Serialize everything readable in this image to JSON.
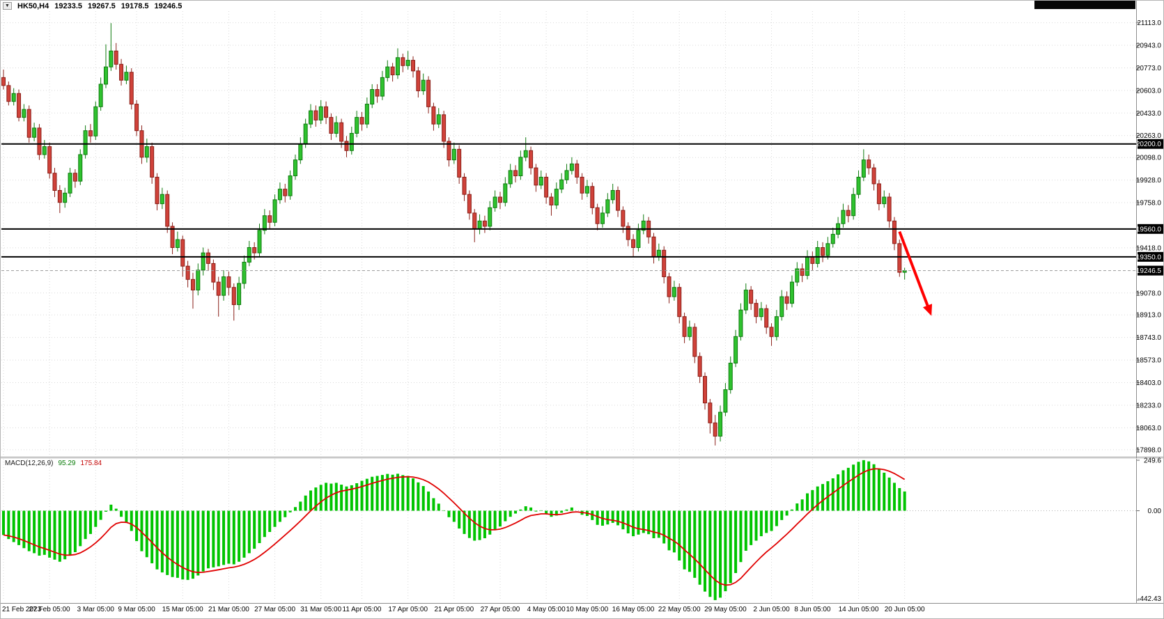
{
  "header": {
    "symbol_period": "HK50,H4",
    "open": "19233.5",
    "high": "19267.5",
    "low": "19178.5",
    "close": "19246.5"
  },
  "indicator": {
    "name": "MACD(12,26,9)",
    "main": "95.29",
    "signal": "175.84"
  },
  "arrow": {
    "from_index": 175,
    "from_price": 19540,
    "to_index": 181,
    "to_price": 18930
  },
  "colors": {
    "bull": "#2fc22f",
    "bull_border": "#0e7a0e",
    "bear": "#d0423a",
    "bear_border": "#8a1f18",
    "macd_hist": "#00c400",
    "macd_signal": "#e00000",
    "arrow": "#ff0000",
    "level_line": "#000000",
    "grid": "#d9d9d9",
    "axis_text": "#000000",
    "price_box_bg": "#000000",
    "price_box_text": "#ffffff"
  },
  "chart_data": {
    "type": "candlestick",
    "title": "HK50,H4",
    "ohlc_display": {
      "open": 19233.5,
      "high": 19267.5,
      "low": 19178.5,
      "close": 19246.5
    },
    "price_range": {
      "max": 21200,
      "min": 17850
    },
    "y_axis_ticks": [
      "21113.0",
      "20943.0",
      "20773.0",
      "20603.0",
      "20433.0",
      "20263.0",
      "20098.0",
      "19928.0",
      "19758.0",
      "19418.0",
      "19078.0",
      "18913.0",
      "18743.0",
      "18573.0",
      "18403.0",
      "18233.0",
      "18063.0",
      "17898.0"
    ],
    "horizontal_levels": [
      20200.0,
      19560.0,
      19350.0
    ],
    "current_price": 19246.5,
    "x_axis_labels": [
      {
        "text": "21 Feb 2023",
        "candle_index": 0
      },
      {
        "text": "27 Feb 05:00",
        "candle_index": 9
      },
      {
        "text": "3 Mar 05:00",
        "candle_index": 18
      },
      {
        "text": "9 Mar 05:00",
        "candle_index": 26
      },
      {
        "text": "15 Mar 05:00",
        "candle_index": 35
      },
      {
        "text": "21 Mar 05:00",
        "candle_index": 44
      },
      {
        "text": "27 Mar 05:00",
        "candle_index": 53
      },
      {
        "text": "31 Mar 05:00",
        "candle_index": 62
      },
      {
        "text": "11 Apr 05:00",
        "candle_index": 70
      },
      {
        "text": "17 Apr 05:00",
        "candle_index": 79
      },
      {
        "text": "21 Apr 05:00",
        "candle_index": 88
      },
      {
        "text": "27 Apr 05:00",
        "candle_index": 97
      },
      {
        "text": "4 May 05:00",
        "candle_index": 106
      },
      {
        "text": "10 May 05:00",
        "candle_index": 114
      },
      {
        "text": "16 May 05:00",
        "candle_index": 123
      },
      {
        "text": "22 May 05:00",
        "candle_index": 132
      },
      {
        "text": "29 May 05:00",
        "candle_index": 141
      },
      {
        "text": "2 Jun 05:00",
        "candle_index": 150
      },
      {
        "text": "8 Jun 05:00",
        "candle_index": 158
      },
      {
        "text": "14 Jun 05:00",
        "candle_index": 167
      },
      {
        "text": "20 Jun 05:00",
        "candle_index": 176
      }
    ],
    "candles": [
      [
        20700,
        20760,
        20610,
        20640
      ],
      [
        20640,
        20670,
        20490,
        20520
      ],
      [
        20520,
        20620,
        20490,
        20580
      ],
      [
        20580,
        20610,
        20370,
        20400
      ],
      [
        20400,
        20500,
        20370,
        20460
      ],
      [
        20460,
        20490,
        20210,
        20250
      ],
      [
        20250,
        20360,
        20220,
        20320
      ],
      [
        20320,
        20350,
        20080,
        20120
      ],
      [
        20120,
        20230,
        20090,
        20180
      ],
      [
        20180,
        20210,
        19940,
        19980
      ],
      [
        19980,
        20020,
        19800,
        19850
      ],
      [
        19850,
        19890,
        19680,
        19760
      ],
      [
        19760,
        19870,
        19720,
        19830
      ],
      [
        19830,
        20020,
        19800,
        19980
      ],
      [
        19980,
        20010,
        19870,
        19920
      ],
      [
        19920,
        20160,
        19890,
        20120
      ],
      [
        20120,
        20340,
        20090,
        20300
      ],
      [
        20300,
        20350,
        20210,
        20260
      ],
      [
        20260,
        20520,
        20230,
        20480
      ],
      [
        20480,
        20700,
        20450,
        20650
      ],
      [
        20650,
        20950,
        20620,
        20780
      ],
      [
        20780,
        21110,
        20750,
        20900
      ],
      [
        20900,
        20960,
        20760,
        20800
      ],
      [
        20800,
        20840,
        20640,
        20680
      ],
      [
        20680,
        20790,
        20650,
        20740
      ],
      [
        20740,
        20770,
        20460,
        20500
      ],
      [
        20500,
        20530,
        20260,
        20300
      ],
      [
        20300,
        20340,
        20050,
        20100
      ],
      [
        20100,
        20240,
        20060,
        20180
      ],
      [
        20180,
        20210,
        19900,
        19950
      ],
      [
        19950,
        19980,
        19700,
        19750
      ],
      [
        19750,
        19870,
        19710,
        19820
      ],
      [
        19820,
        19850,
        19530,
        19580
      ],
      [
        19580,
        19610,
        19370,
        19420
      ],
      [
        19420,
        19540,
        19390,
        19480
      ],
      [
        19480,
        19510,
        19200,
        19280
      ],
      [
        19280,
        19320,
        19120,
        19180
      ],
      [
        19180,
        19230,
        18960,
        19100
      ],
      [
        19100,
        19300,
        19060,
        19250
      ],
      [
        19250,
        19420,
        19210,
        19380
      ],
      [
        19380,
        19410,
        19250,
        19300
      ],
      [
        19300,
        19330,
        19100,
        19160
      ],
      [
        19160,
        19200,
        18900,
        19060
      ],
      [
        19060,
        19250,
        19020,
        19200
      ],
      [
        19200,
        19240,
        19060,
        19120
      ],
      [
        19120,
        19150,
        18870,
        18990
      ],
      [
        18990,
        19200,
        18950,
        19150
      ],
      [
        19150,
        19360,
        19110,
        19310
      ],
      [
        19310,
        19470,
        19280,
        19420
      ],
      [
        19420,
        19460,
        19330,
        19380
      ],
      [
        19380,
        19600,
        19350,
        19550
      ],
      [
        19550,
        19710,
        19520,
        19660
      ],
      [
        19660,
        19700,
        19560,
        19610
      ],
      [
        19610,
        19820,
        19580,
        19780
      ],
      [
        19780,
        19910,
        19750,
        19860
      ],
      [
        19860,
        19900,
        19760,
        19810
      ],
      [
        19810,
        20000,
        19780,
        19960
      ],
      [
        19960,
        20120,
        19930,
        20080
      ],
      [
        20080,
        20250,
        20050,
        20200
      ],
      [
        20200,
        20390,
        20170,
        20350
      ],
      [
        20350,
        20500,
        20320,
        20450
      ],
      [
        20450,
        20490,
        20330,
        20380
      ],
      [
        20380,
        20530,
        20350,
        20480
      ],
      [
        20480,
        20520,
        20350,
        20400
      ],
      [
        20400,
        20430,
        20230,
        20280
      ],
      [
        20280,
        20410,
        20250,
        20360
      ],
      [
        20360,
        20390,
        20170,
        20220
      ],
      [
        20220,
        20260,
        20100,
        20150
      ],
      [
        20150,
        20330,
        20120,
        20280
      ],
      [
        20280,
        20450,
        20250,
        20400
      ],
      [
        20400,
        20440,
        20300,
        20350
      ],
      [
        20350,
        20550,
        20320,
        20500
      ],
      [
        20500,
        20650,
        20470,
        20610
      ],
      [
        20610,
        20650,
        20510,
        20560
      ],
      [
        20560,
        20750,
        20530,
        20700
      ],
      [
        20700,
        20830,
        20670,
        20780
      ],
      [
        20780,
        20810,
        20670,
        20720
      ],
      [
        20720,
        20920,
        20690,
        20850
      ],
      [
        20850,
        20880,
        20740,
        20790
      ],
      [
        20790,
        20900,
        20760,
        20830
      ],
      [
        20830,
        20860,
        20700,
        20750
      ],
      [
        20750,
        20780,
        20550,
        20600
      ],
      [
        20600,
        20730,
        20570,
        20680
      ],
      [
        20680,
        20710,
        20430,
        20480
      ],
      [
        20480,
        20510,
        20300,
        20350
      ],
      [
        20350,
        20470,
        20320,
        20420
      ],
      [
        20420,
        20450,
        20170,
        20220
      ],
      [
        20220,
        20250,
        20030,
        20080
      ],
      [
        20080,
        20210,
        20050,
        20160
      ],
      [
        20160,
        20190,
        19900,
        19950
      ],
      [
        19950,
        19980,
        19770,
        19820
      ],
      [
        19820,
        19850,
        19630,
        19680
      ],
      [
        19680,
        19710,
        19460,
        19560
      ],
      [
        19560,
        19670,
        19520,
        19620
      ],
      [
        19620,
        19660,
        19530,
        19580
      ],
      [
        19580,
        19770,
        19550,
        19720
      ],
      [
        19720,
        19850,
        19690,
        19800
      ],
      [
        19800,
        19840,
        19710,
        19760
      ],
      [
        19760,
        19950,
        19730,
        19900
      ],
      [
        19900,
        20050,
        19870,
        20000
      ],
      [
        20000,
        20040,
        19910,
        19960
      ],
      [
        19960,
        20150,
        19930,
        20100
      ],
      [
        20100,
        20250,
        20070,
        20150
      ],
      [
        20150,
        20180,
        19970,
        20020
      ],
      [
        20020,
        20050,
        19840,
        19890
      ],
      [
        19890,
        20000,
        19860,
        19950
      ],
      [
        19950,
        19980,
        19750,
        19800
      ],
      [
        19800,
        19830,
        19660,
        19740
      ],
      [
        19740,
        19910,
        19710,
        19860
      ],
      [
        19860,
        19980,
        19830,
        19930
      ],
      [
        19930,
        20050,
        19900,
        20000
      ],
      [
        20000,
        20100,
        19970,
        20050
      ],
      [
        20050,
        20080,
        19900,
        19950
      ],
      [
        19950,
        19980,
        19780,
        19830
      ],
      [
        19830,
        19930,
        19800,
        19880
      ],
      [
        19880,
        19910,
        19670,
        19720
      ],
      [
        19720,
        19750,
        19550,
        19600
      ],
      [
        19600,
        19730,
        19570,
        19680
      ],
      [
        19680,
        19830,
        19650,
        19780
      ],
      [
        19780,
        19900,
        19750,
        19850
      ],
      [
        19850,
        19880,
        19650,
        19700
      ],
      [
        19700,
        19730,
        19530,
        19580
      ],
      [
        19580,
        19610,
        19430,
        19480
      ],
      [
        19480,
        19520,
        19350,
        19420
      ],
      [
        19420,
        19600,
        19390,
        19550
      ],
      [
        19550,
        19670,
        19520,
        19620
      ],
      [
        19620,
        19650,
        19450,
        19500
      ],
      [
        19500,
        19530,
        19300,
        19350
      ],
      [
        19350,
        19450,
        19320,
        19400
      ],
      [
        19400,
        19430,
        19150,
        19200
      ],
      [
        19200,
        19230,
        19000,
        19050
      ],
      [
        19050,
        19170,
        19020,
        19120
      ],
      [
        19120,
        19150,
        18850,
        18900
      ],
      [
        18900,
        18930,
        18700,
        18750
      ],
      [
        18750,
        18870,
        18720,
        18820
      ],
      [
        18820,
        18850,
        18550,
        18600
      ],
      [
        18600,
        18630,
        18400,
        18450
      ],
      [
        18450,
        18480,
        18200,
        18250
      ],
      [
        18250,
        18280,
        18020,
        18100
      ],
      [
        18100,
        18160,
        17930,
        18000
      ],
      [
        18000,
        18230,
        17960,
        18180
      ],
      [
        18180,
        18400,
        18150,
        18350
      ],
      [
        18350,
        18600,
        18320,
        18550
      ],
      [
        18550,
        18800,
        18520,
        18750
      ],
      [
        18750,
        19000,
        18720,
        18950
      ],
      [
        18950,
        19150,
        18920,
        19100
      ],
      [
        19100,
        19130,
        18950,
        19000
      ],
      [
        19000,
        19030,
        18850,
        18900
      ],
      [
        18900,
        19010,
        18870,
        18960
      ],
      [
        18960,
        18990,
        18770,
        18820
      ],
      [
        18820,
        18850,
        18680,
        18750
      ],
      [
        18750,
        18950,
        18720,
        18900
      ],
      [
        18900,
        19100,
        18870,
        19050
      ],
      [
        19050,
        19090,
        18950,
        19000
      ],
      [
        19000,
        19210,
        18970,
        19160
      ],
      [
        19160,
        19310,
        19130,
        19260
      ],
      [
        19260,
        19300,
        19160,
        19210
      ],
      [
        19210,
        19400,
        19180,
        19350
      ],
      [
        19350,
        19390,
        19250,
        19300
      ],
      [
        19300,
        19470,
        19270,
        19420
      ],
      [
        19420,
        19460,
        19310,
        19360
      ],
      [
        19360,
        19500,
        19330,
        19450
      ],
      [
        19450,
        19570,
        19420,
        19520
      ],
      [
        19520,
        19650,
        19490,
        19600
      ],
      [
        19600,
        19750,
        19570,
        19700
      ],
      [
        19700,
        19740,
        19610,
        19660
      ],
      [
        19660,
        19870,
        19630,
        19820
      ],
      [
        19820,
        20000,
        19790,
        19950
      ],
      [
        19950,
        20160,
        19920,
        20080
      ],
      [
        20080,
        20120,
        19970,
        20020
      ],
      [
        20020,
        20050,
        19850,
        19900
      ],
      [
        19900,
        19930,
        19700,
        19750
      ],
      [
        19750,
        19850,
        19720,
        19800
      ],
      [
        19800,
        19830,
        19570,
        19620
      ],
      [
        19620,
        19650,
        19400,
        19450
      ],
      [
        19450,
        19480,
        19200,
        19233.5
      ],
      [
        19233.5,
        19267.5,
        19178.5,
        19246.5
      ]
    ],
    "macd": {
      "label": "MACD(12,26,9)",
      "main_value": 95.29,
      "signal_value": 175.84,
      "axis_labels": [
        {
          "text": "249.6",
          "value": 249.6
        },
        {
          "text": "0.00",
          "value": 0
        },
        {
          "text": "-442.43",
          "value": -442.43
        }
      ],
      "axis_max": 249.6,
      "axis_min": -442.43,
      "histogram": [
        -120,
        -140,
        -155,
        -170,
        -185,
        -200,
        -210,
        -222,
        -218,
        -232,
        -242,
        -252,
        -240,
        -220,
        -205,
        -175,
        -140,
        -115,
        -80,
        -45,
        -5,
        30,
        10,
        -30,
        -60,
        -100,
        -150,
        -200,
        -230,
        -260,
        -290,
        -305,
        -318,
        -328,
        -332,
        -340,
        -342,
        -336,
        -320,
        -300,
        -285,
        -280,
        -275,
        -268,
        -262,
        -265,
        -252,
        -232,
        -210,
        -188,
        -160,
        -130,
        -105,
        -80,
        -55,
        -32,
        -8,
        18,
        45,
        75,
        100,
        115,
        128,
        138,
        134,
        138,
        129,
        120,
        126,
        136,
        148,
        158,
        168,
        172,
        177,
        182,
        178,
        183,
        176,
        172,
        160,
        140,
        122,
        95,
        62,
        35,
        2,
        -32,
        -55,
        -88,
        -115,
        -135,
        -148,
        -145,
        -136,
        -118,
        -95,
        -78,
        -52,
        -30,
        -14,
        6,
        22,
        16,
        -4,
        2,
        -16,
        -30,
        -24,
        -10,
        6,
        16,
        0,
        -20,
        -26,
        -46,
        -70,
        -74,
        -68,
        -60,
        -72,
        -92,
        -112,
        -126,
        -118,
        -110,
        -116,
        -136,
        -134,
        -162,
        -196,
        -206,
        -246,
        -290,
        -302,
        -332,
        -366,
        -400,
        -426,
        -442,
        -430,
        -398,
        -358,
        -308,
        -254,
        -198,
        -170,
        -148,
        -126,
        -110,
        -100,
        -76,
        -46,
        -24,
        6,
        36,
        56,
        86,
        102,
        120,
        132,
        146,
        160,
        180,
        200,
        212,
        228,
        242,
        250,
        244,
        230,
        206,
        188,
        164,
        138,
        112,
        95.29
      ]
    }
  }
}
